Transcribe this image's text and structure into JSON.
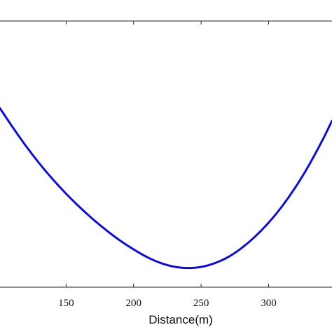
{
  "chart_data": {
    "type": "line",
    "title": "",
    "xlabel": "Distance(m)",
    "ylabel": "",
    "xlim": [
      101,
      347
    ],
    "ylim": [
      0,
      1
    ],
    "grid": false,
    "x_ticks": [
      150,
      200,
      250,
      300
    ],
    "series": [
      {
        "color": "#1010c8",
        "points": [
          [
            101,
            0.672
          ],
          [
            110,
            0.604
          ],
          [
            120,
            0.532
          ],
          [
            130,
            0.466
          ],
          [
            140,
            0.406
          ],
          [
            150,
            0.351
          ],
          [
            160,
            0.301
          ],
          [
            170,
            0.255
          ],
          [
            180,
            0.213
          ],
          [
            190,
            0.175
          ],
          [
            200,
            0.142
          ],
          [
            210,
            0.113
          ],
          [
            220,
            0.091
          ],
          [
            230,
            0.077
          ],
          [
            240,
            0.072
          ],
          [
            250,
            0.076
          ],
          [
            260,
            0.09
          ],
          [
            270,
            0.113
          ],
          [
            280,
            0.147
          ],
          [
            290,
            0.19
          ],
          [
            300,
            0.242
          ],
          [
            310,
            0.304
          ],
          [
            320,
            0.376
          ],
          [
            330,
            0.459
          ],
          [
            340,
            0.553
          ],
          [
            347,
            0.625
          ]
        ]
      }
    ]
  }
}
